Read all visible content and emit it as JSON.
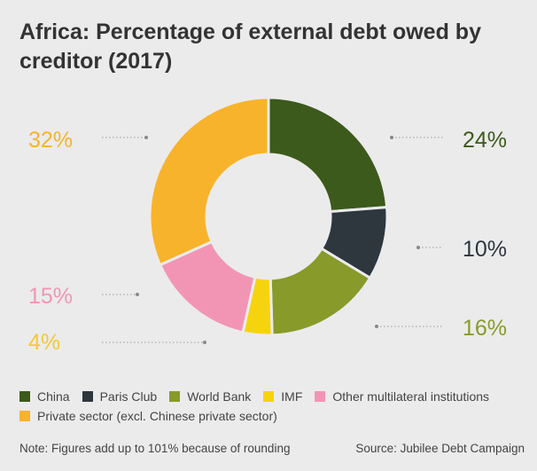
{
  "chart_data": {
    "type": "pie",
    "title": "Africa: Percentage of external debt owed by creditor (2017)",
    "categories": [
      "China",
      "Paris Club",
      "World Bank",
      "IMF",
      "Other multilateral institutions",
      "Private sector (excl. Chinese private sector)"
    ],
    "values": [
      24,
      10,
      16,
      4,
      15,
      32
    ],
    "data_labels": [
      "24%",
      "10%",
      "16%",
      "4%",
      "15%",
      "32%"
    ],
    "colors": [
      "#3b5a1b",
      "#2e363e",
      "#889a2a",
      "#f5d40f",
      "#f295b5",
      "#f7b32b"
    ],
    "donut": true,
    "legend_position": "bottom"
  },
  "note": "Note: Figures add up to 101% because of rounding",
  "source": "Source: Jubilee Debt Campaign"
}
